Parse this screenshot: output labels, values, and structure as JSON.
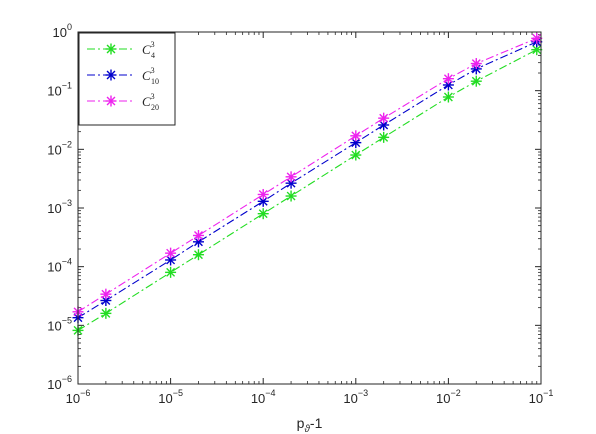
{
  "chart_data": {
    "type": "line",
    "xscale": "log",
    "yscale": "log",
    "xlabel_main": "p",
    "xlabel_sub": "ϑ",
    "xlabel_tail": "-1",
    "xlim": [
      1e-06,
      0.1
    ],
    "ylim": [
      1e-06,
      1
    ],
    "x_ticks": [
      {
        "value": 1e-06,
        "base": "10",
        "exp": "−6"
      },
      {
        "value": 1e-05,
        "base": "10",
        "exp": "−5"
      },
      {
        "value": 0.0001,
        "base": "10",
        "exp": "−4"
      },
      {
        "value": 0.001,
        "base": "10",
        "exp": "−3"
      },
      {
        "value": 0.01,
        "base": "10",
        "exp": "−2"
      },
      {
        "value": 0.1,
        "base": "10",
        "exp": "−1"
      }
    ],
    "y_ticks": [
      {
        "value": 1e-06,
        "base": "10",
        "exp": "−6"
      },
      {
        "value": 1e-05,
        "base": "10",
        "exp": "−5"
      },
      {
        "value": 0.0001,
        "base": "10",
        "exp": "−4"
      },
      {
        "value": 0.001,
        "base": "10",
        "exp": "−3"
      },
      {
        "value": 0.01,
        "base": "10",
        "exp": "−2"
      },
      {
        "value": 0.1,
        "base": "10",
        "exp": "−1"
      },
      {
        "value": 1,
        "base": "10",
        "exp": "0"
      }
    ],
    "x": [
      1e-06,
      2e-06,
      1e-05,
      2e-05,
      0.0001,
      0.0002,
      0.001,
      0.002,
      0.01,
      0.02,
      0.09
    ],
    "series": [
      {
        "name_base": "C",
        "name_sub": "4",
        "name_sup": "3",
        "color": "#22dd22",
        "dash": "8 3 2 3",
        "values": [
          8.2e-06,
          1.6e-05,
          8e-05,
          0.00016,
          0.0008,
          0.0016,
          0.008,
          0.016,
          0.078,
          0.145,
          0.5
        ]
      },
      {
        "name_base": "C",
        "name_sub": "10",
        "name_sup": "3",
        "color": "#0000cc",
        "dash": "8 3 2 3",
        "values": [
          1.35e-05,
          2.65e-05,
          0.00013,
          0.000265,
          0.0013,
          0.00265,
          0.013,
          0.026,
          0.125,
          0.235,
          0.68
        ]
      },
      {
        "name_base": "C",
        "name_sub": "20",
        "name_sup": "3",
        "color": "#ee22ee",
        "dash": "8 3 2 3",
        "values": [
          1.7e-05,
          3.4e-05,
          0.00017,
          0.00034,
          0.0017,
          0.0034,
          0.017,
          0.034,
          0.16,
          0.29,
          0.78
        ]
      }
    ],
    "grid": false,
    "legend_position": "top-left"
  }
}
